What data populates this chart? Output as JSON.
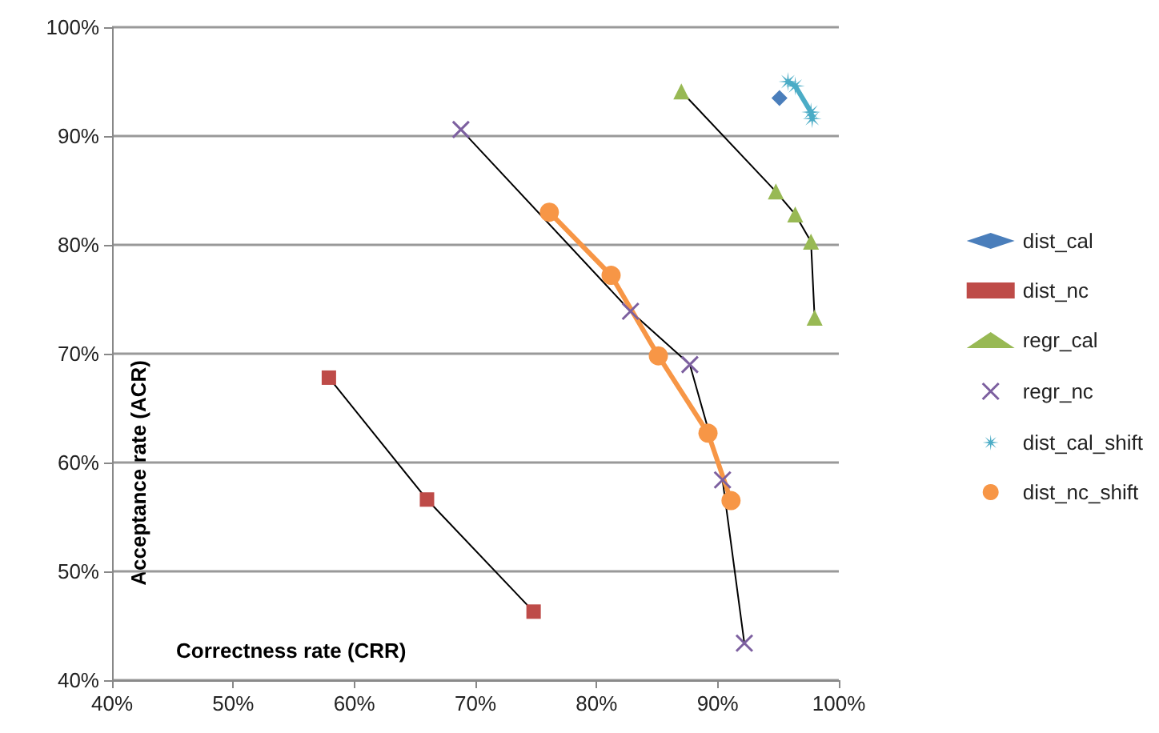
{
  "chart_data": {
    "type": "line",
    "xlabel": "Correctness rate (CRR)",
    "ylabel": "Acceptance rate (ACR)",
    "xlim": [
      0.4,
      1.0
    ],
    "xticks": [
      {
        "value": 0.4,
        "label": "40%"
      },
      {
        "value": 0.5,
        "label": "50%"
      },
      {
        "value": 0.6,
        "label": "60%"
      },
      {
        "value": 0.7,
        "label": "70%"
      },
      {
        "value": 0.8,
        "label": "80%"
      },
      {
        "value": 0.9,
        "label": "90%"
      },
      {
        "value": 1.0,
        "label": "100%"
      }
    ],
    "ylim": [
      0.4,
      1.0
    ],
    "yticks": [
      {
        "value": 0.4,
        "label": "40%"
      },
      {
        "value": 0.5,
        "label": "50%"
      },
      {
        "value": 0.6,
        "label": "60%"
      },
      {
        "value": 0.7,
        "label": "70%"
      },
      {
        "value": 0.8,
        "label": "80%"
      },
      {
        "value": 0.9,
        "label": "90%"
      },
      {
        "value": 1.0,
        "label": "100%"
      }
    ],
    "grid": "y",
    "legend": "right",
    "series": [
      {
        "name": "dist_cal",
        "color": "#4a7ebb",
        "marker": "diamond",
        "x": [
          0.951
        ],
        "values": [
          0.935
        ]
      },
      {
        "name": "dist_nc",
        "color": "#be4b48",
        "marker": "square",
        "x": [
          0.579,
          0.66,
          0.748
        ],
        "values": [
          0.678,
          0.566,
          0.463
        ]
      },
      {
        "name": "regr_cal",
        "color": "#98b954",
        "marker": "triangle",
        "x": [
          0.87,
          0.948,
          0.964,
          0.977,
          0.98
        ],
        "values": [
          0.941,
          0.849,
          0.828,
          0.803,
          0.733
        ]
      },
      {
        "name": "regr_nc",
        "color": "#7d60a0",
        "marker": "cross",
        "x": [
          0.688,
          0.828,
          0.877,
          0.904,
          0.922
        ],
        "values": [
          0.906,
          0.739,
          0.69,
          0.584,
          0.434
        ]
      },
      {
        "name": "dist_cal_shift",
        "color": "#4bacc6",
        "marker": "star",
        "x": [
          0.958,
          0.964,
          0.977,
          0.978
        ],
        "values": [
          0.95,
          0.946,
          0.922,
          0.916
        ]
      },
      {
        "name": "dist_nc_shift",
        "color": "#f79646",
        "marker": "circle",
        "x": [
          0.761,
          0.812,
          0.851,
          0.892,
          0.911
        ],
        "values": [
          0.83,
          0.772,
          0.698,
          0.627,
          0.565
        ]
      }
    ]
  }
}
